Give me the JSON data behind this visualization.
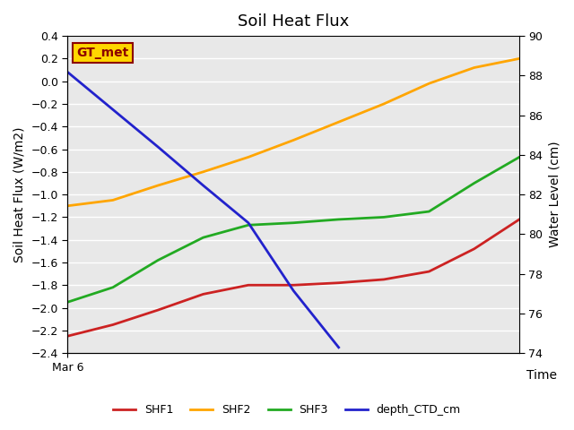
{
  "title": "Soil Heat Flux",
  "xlabel": "Time",
  "ylabel_left": "Soil Heat Flux (W/m2)",
  "ylabel_right": "Water Level (cm)",
  "x_tick_label": "Mar 6",
  "background_color": "#e8e8e8",
  "ylim_left": [
    -2.4,
    0.4
  ],
  "ylim_right": [
    74,
    90
  ],
  "yticks_left": [
    -2.4,
    -2.2,
    -2.0,
    -1.8,
    -1.6,
    -1.4,
    -1.2,
    -1.0,
    -0.8,
    -0.6,
    -0.4,
    -0.2,
    0.0,
    0.2,
    0.4
  ],
  "yticks_right": [
    74,
    76,
    78,
    80,
    82,
    84,
    86,
    88,
    90
  ],
  "annotation_text": "GT_met",
  "annotation_color": "#8B0000",
  "annotation_bg": "#FFD700",
  "SHF1": {
    "x": [
      0,
      1,
      2,
      3,
      4,
      5,
      6,
      7,
      8,
      9,
      10
    ],
    "y": [
      -2.25,
      -2.15,
      -2.02,
      -1.88,
      -1.8,
      -1.8,
      -1.78,
      -1.75,
      -1.68,
      -1.48,
      -1.22
    ],
    "color": "#cc2222",
    "linewidth": 2
  },
  "SHF2": {
    "x": [
      0,
      1,
      2,
      3,
      4,
      5,
      6,
      7,
      8,
      9,
      10
    ],
    "y": [
      -1.1,
      -1.05,
      -0.92,
      -0.8,
      -0.67,
      -0.52,
      -0.36,
      -0.2,
      -0.02,
      0.12,
      0.2
    ],
    "color": "#FFA500",
    "linewidth": 2
  },
  "SHF3": {
    "x": [
      0,
      1,
      2,
      3,
      4,
      5,
      6,
      7,
      8,
      9,
      10
    ],
    "y": [
      -1.95,
      -1.82,
      -1.58,
      -1.38,
      -1.27,
      -1.25,
      -1.22,
      -1.2,
      -1.15,
      -0.9,
      -0.67
    ],
    "color": "#22aa22",
    "linewidth": 2
  },
  "depth_CTD_cm": {
    "x": [
      0,
      1,
      2,
      3,
      4,
      5,
      6
    ],
    "y": [
      0.08,
      -0.25,
      -0.58,
      -0.92,
      -1.25,
      -1.85,
      -2.35
    ],
    "color": "#2222cc",
    "linewidth": 2
  },
  "legend_items": [
    {
      "label": "SHF1",
      "color": "#cc2222"
    },
    {
      "label": "SHF2",
      "color": "#FFA500"
    },
    {
      "label": "SHF3",
      "color": "#22aa22"
    },
    {
      "label": "depth_CTD_cm",
      "color": "#2222cc"
    }
  ],
  "fig_width": 6.4,
  "fig_height": 4.8,
  "dpi": 100
}
